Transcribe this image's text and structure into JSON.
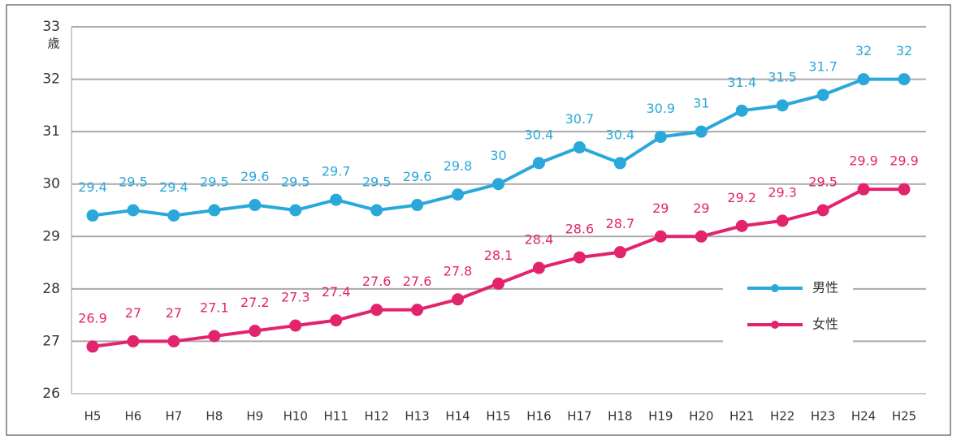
{
  "chart_data": {
    "type": "line",
    "ylabel": "歳",
    "categories": [
      "H5",
      "H6",
      "H7",
      "H8",
      "H9",
      "H10",
      "H11",
      "H12",
      "H13",
      "H14",
      "H15",
      "H16",
      "H17",
      "H18",
      "H19",
      "H20",
      "H21",
      "H22",
      "H23",
      "H24",
      "H25"
    ],
    "series": [
      {
        "name": "男性",
        "color": "#2aa8da",
        "values": [
          29.4,
          29.5,
          29.4,
          29.5,
          29.6,
          29.5,
          29.7,
          29.5,
          29.6,
          29.8,
          30,
          30.4,
          30.7,
          30.4,
          30.9,
          31,
          31.4,
          31.5,
          31.7,
          32,
          32
        ]
      },
      {
        "name": "女性",
        "color": "#e2246e",
        "values": [
          26.9,
          27,
          27,
          27.1,
          27.2,
          27.3,
          27.4,
          27.6,
          27.6,
          27.8,
          28.1,
          28.4,
          28.6,
          28.7,
          29,
          29,
          29.2,
          29.3,
          29.5,
          29.9,
          29.9
        ]
      }
    ],
    "ylim": [
      26,
      33
    ],
    "yticks": [
      26,
      27,
      28,
      29,
      30,
      31,
      32,
      33
    ],
    "grid": true,
    "legend": "right"
  }
}
